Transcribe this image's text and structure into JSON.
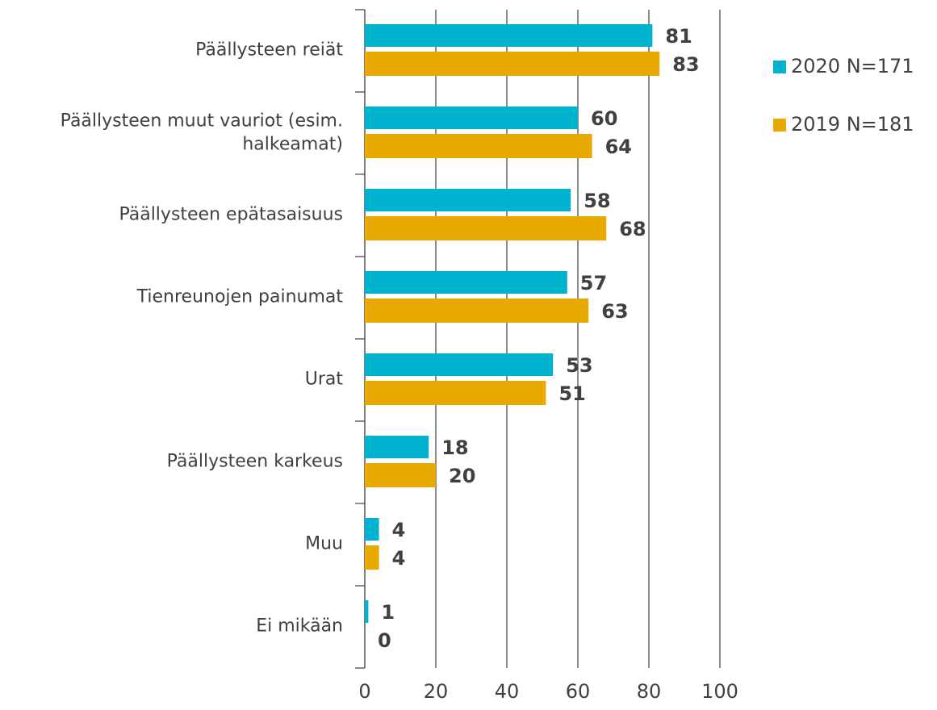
{
  "chart_data": {
    "type": "bar",
    "orientation": "horizontal",
    "categories": [
      "Päällysteen reiät",
      "Päällysteen muut vauriot (esim. halkeamat)",
      "Päällysteen epätasaisuus",
      "Tienreunojen painumat",
      "Urat",
      "Päällysteen karkeus",
      "Muu",
      "Ei mikään"
    ],
    "series": [
      {
        "name": "2020 N=171",
        "color": "#00b3cf",
        "values": [
          81,
          60,
          58,
          57,
          53,
          18,
          4,
          1
        ]
      },
      {
        "name": "2019 N=181",
        "color": "#e8a900",
        "values": [
          83,
          64,
          68,
          63,
          51,
          20,
          4,
          0
        ]
      }
    ],
    "xlim": [
      0,
      100
    ],
    "xticks": [
      0,
      20,
      40,
      60,
      80,
      100
    ],
    "grid": true,
    "legend": "right"
  }
}
